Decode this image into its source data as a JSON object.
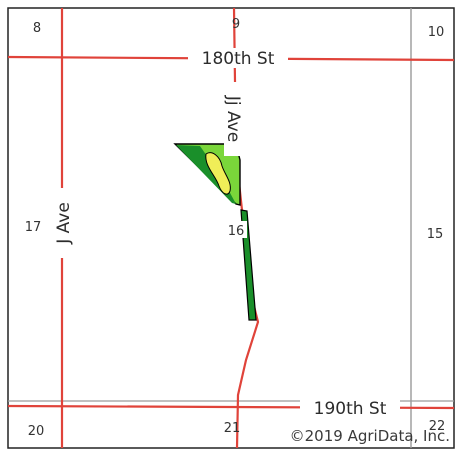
{
  "map": {
    "sections": {
      "s8": "8",
      "s9": "9",
      "s10": "10",
      "s15": "15",
      "s16": "16",
      "s17": "17",
      "s20": "20",
      "s21": "21",
      "s22": "22"
    },
    "roads": {
      "north_street": "180th St",
      "south_street": "190th St",
      "west_avenue": "J Ave",
      "middle_avenue": "Jj Ave"
    },
    "copyright": "©2019 AgriData, Inc."
  },
  "colors": {
    "road": "#e0433a",
    "section_line": "#9a9a9a",
    "frame": "#222222",
    "field_outline": "#000000",
    "field_low": "#1a8f2a",
    "field_mid": "#7ad63a",
    "field_high": "#f0ee58"
  }
}
